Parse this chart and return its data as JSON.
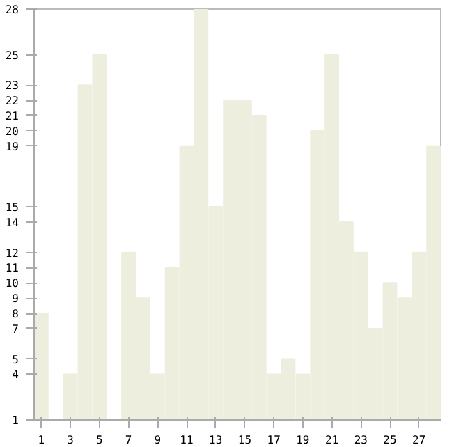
{
  "chart_data": {
    "type": "bar",
    "x": [
      1,
      2,
      3,
      4,
      5,
      6,
      7,
      8,
      9,
      10,
      11,
      12,
      13,
      14,
      15,
      16,
      17,
      18,
      19,
      20,
      21,
      22,
      23,
      24,
      25,
      26,
      27,
      28
    ],
    "values": [
      8,
      1,
      4,
      23,
      25,
      1,
      12,
      9,
      4,
      11,
      19,
      28,
      15,
      22,
      22,
      21,
      4,
      5,
      4,
      20,
      25,
      14,
      12,
      7,
      10,
      9,
      12,
      19
    ],
    "color": "#eeeedf",
    "xlim": [
      0.5,
      28.5
    ],
    "xticks": [
      1,
      3,
      5,
      7,
      9,
      11,
      13,
      15,
      17,
      19,
      21,
      23,
      25,
      27
    ],
    "ylim": [
      1,
      28
    ],
    "yticks": [
      1,
      4,
      5,
      7,
      8,
      9,
      10,
      11,
      12,
      14,
      15,
      19,
      20,
      21,
      22,
      23,
      25,
      28
    ],
    "grid": false
  }
}
